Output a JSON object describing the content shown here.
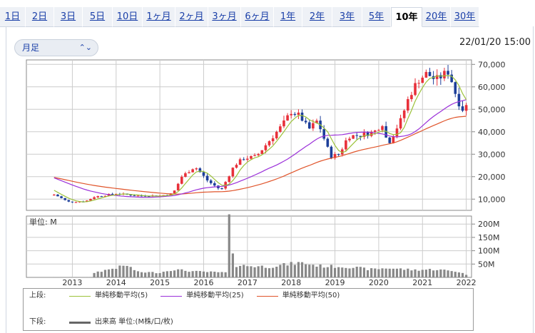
{
  "tabs": [
    {
      "label": "1日",
      "active": false
    },
    {
      "label": "2日",
      "active": false
    },
    {
      "label": "3日",
      "active": false
    },
    {
      "label": "5日",
      "active": false
    },
    {
      "label": "10日",
      "active": false
    },
    {
      "label": "1ヶ月",
      "active": false
    },
    {
      "label": "2ヶ月",
      "active": false
    },
    {
      "label": "3ヶ月",
      "active": false
    },
    {
      "label": "6ヶ月",
      "active": false
    },
    {
      "label": "1年",
      "active": false
    },
    {
      "label": "2年",
      "active": false
    },
    {
      "label": "3年",
      "active": false
    },
    {
      "label": "5年",
      "active": false
    },
    {
      "label": "10年",
      "active": true
    },
    {
      "label": "20年",
      "active": false
    },
    {
      "label": "30年",
      "active": false
    }
  ],
  "period_select": {
    "value": "月足",
    "icon": "chevron-up-down-icon"
  },
  "timestamp": "22/01/20 15:00",
  "volume_unit_label": "単位: M",
  "legend": {
    "upper_label": "上段:",
    "lower_label": "下段:",
    "ma": [
      {
        "name": "単純移動平均(5)",
        "color": "#9cc23a"
      },
      {
        "name": "単純移動平均(25)",
        "color": "#9b30d9"
      },
      {
        "name": "単純移動平均(50)",
        "color": "#e0542a"
      }
    ],
    "volume": "出来高 単位:(M株/口/枚)"
  },
  "colors": {
    "up": "#e8303a",
    "down": "#1d3f9a",
    "ma5": "#9cc23a",
    "ma25": "#9b30d9",
    "ma50": "#e0542a",
    "volume": "#888888",
    "grid": "#cccccc"
  },
  "chart_data": [
    {
      "type": "candlestick",
      "interval": "monthly",
      "ylim": [
        5000,
        72000
      ],
      "y_ticks": [
        "70,000",
        "60,000",
        "50,000",
        "40,000",
        "30,000",
        "20,000",
        "10,000"
      ],
      "y_tick_values": [
        70000,
        60000,
        50000,
        40000,
        30000,
        20000,
        10000
      ],
      "x_ticks": [
        "2013",
        "2014",
        "2015",
        "2016",
        "2017",
        "2018",
        "2019",
        "2020",
        "2021",
        "2022"
      ],
      "x_tick_years": [
        2013,
        2014,
        2015,
        2016,
        2017,
        2018,
        2019,
        2020,
        2021,
        2022
      ],
      "x_range": [
        2011.95,
        2022.12
      ],
      "anchors": [
        {
          "t": 2012.6,
          "c": 12000
        },
        {
          "t": 2012.9,
          "c": 8800
        },
        {
          "t": 2013.3,
          "c": 9000
        },
        {
          "t": 2013.5,
          "c": 11000
        },
        {
          "t": 2014.0,
          "c": 12500
        },
        {
          "t": 2014.5,
          "c": 11500
        },
        {
          "t": 2015.0,
          "c": 11500
        },
        {
          "t": 2015.3,
          "c": 12500
        },
        {
          "t": 2015.5,
          "c": 20000
        },
        {
          "t": 2015.8,
          "c": 24500
        },
        {
          "t": 2016.1,
          "c": 18000
        },
        {
          "t": 2016.4,
          "c": 14000
        },
        {
          "t": 2016.7,
          "c": 25000
        },
        {
          "t": 2016.9,
          "c": 28000
        },
        {
          "t": 2017.2,
          "c": 29000
        },
        {
          "t": 2017.5,
          "c": 36000
        },
        {
          "t": 2017.8,
          "c": 43000
        },
        {
          "t": 2018.0,
          "c": 49000
        },
        {
          "t": 2018.2,
          "c": 47000
        },
        {
          "t": 2018.4,
          "c": 41000
        },
        {
          "t": 2018.6,
          "c": 45000
        },
        {
          "t": 2018.9,
          "c": 29000
        },
        {
          "t": 2019.1,
          "c": 30000
        },
        {
          "t": 2019.3,
          "c": 38000
        },
        {
          "t": 2019.6,
          "c": 38500
        },
        {
          "t": 2019.9,
          "c": 40000
        },
        {
          "t": 2020.1,
          "c": 44000
        },
        {
          "t": 2020.2,
          "c": 34000
        },
        {
          "t": 2020.5,
          "c": 45000
        },
        {
          "t": 2020.7,
          "c": 56000
        },
        {
          "t": 2020.9,
          "c": 63000
        },
        {
          "t": 2021.1,
          "c": 66000
        },
        {
          "t": 2021.3,
          "c": 63000
        },
        {
          "t": 2021.6,
          "c": 67000
        },
        {
          "t": 2021.8,
          "c": 54000
        },
        {
          "t": 2021.95,
          "c": 49000
        },
        {
          "t": 2022.05,
          "c": 54000
        }
      ],
      "volume_anchors": [
        {
          "t": 2012.6,
          "v": 0.5
        },
        {
          "t": 2013.45,
          "v": 0.5
        },
        {
          "t": 2013.5,
          "v": 18
        },
        {
          "t": 2014.25,
          "v": 45
        },
        {
          "t": 2014.5,
          "v": 20
        },
        {
          "t": 2015.0,
          "v": 18
        },
        {
          "t": 2015.3,
          "v": 30
        },
        {
          "t": 2015.8,
          "v": 22
        },
        {
          "t": 2016.5,
          "v": 18
        },
        {
          "t": 2016.58,
          "v": 210
        },
        {
          "t": 2016.67,
          "v": 95
        },
        {
          "t": 2016.75,
          "v": 45
        },
        {
          "t": 2017.5,
          "v": 40
        },
        {
          "t": 2018.2,
          "v": 55
        },
        {
          "t": 2018.7,
          "v": 42
        },
        {
          "t": 2019.3,
          "v": 40
        },
        {
          "t": 2019.8,
          "v": 30
        },
        {
          "t": 2020.2,
          "v": 35
        },
        {
          "t": 2020.8,
          "v": 28
        },
        {
          "t": 2021.3,
          "v": 30
        },
        {
          "t": 2021.8,
          "v": 22
        },
        {
          "t": 2022.05,
          "v": 8
        }
      ]
    },
    {
      "type": "bar",
      "name": "出来高",
      "ylim": [
        0,
        230
      ],
      "y_ticks": [
        "200M",
        "150M",
        "100M",
        "50M"
      ],
      "y_tick_values": [
        200,
        150,
        100,
        50
      ]
    }
  ]
}
